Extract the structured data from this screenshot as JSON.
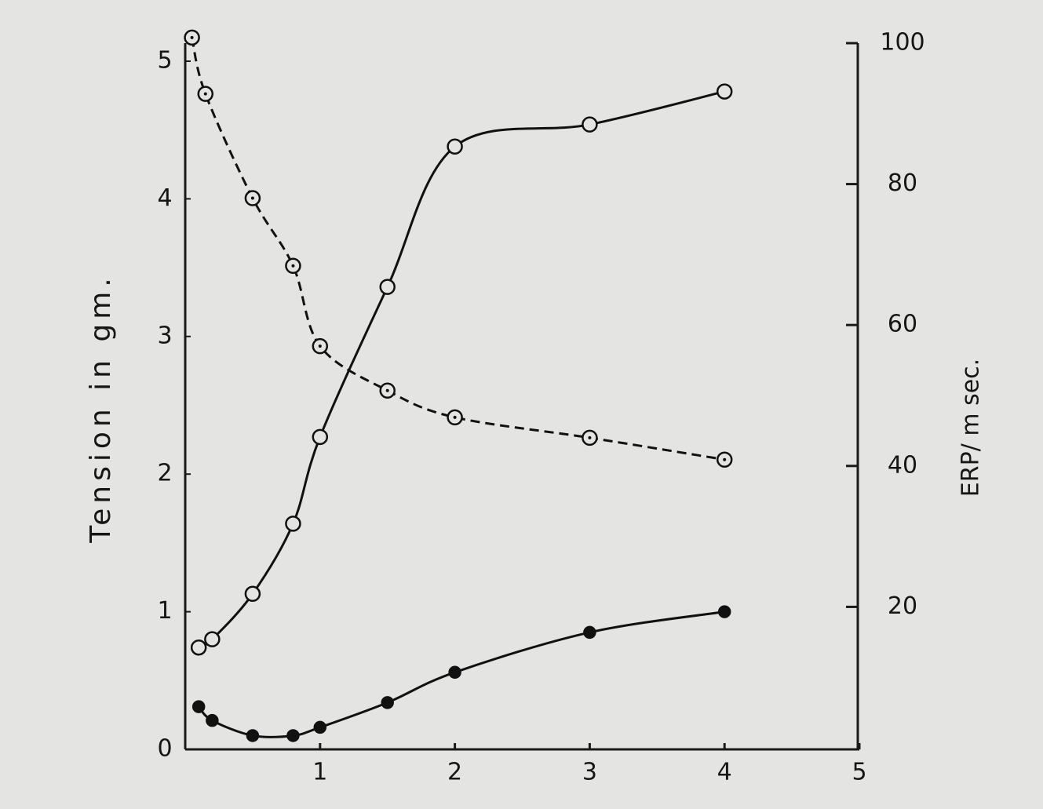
{
  "chart_data": {
    "type": "line",
    "y_label": "Tension in gm.",
    "y2_label": "ERP/ m sec.",
    "xlim": [
      0,
      5
    ],
    "xticks": [
      1,
      2,
      3,
      4,
      5
    ],
    "ylim": [
      0,
      5
    ],
    "yticks": [
      0,
      1,
      2,
      3,
      4,
      5
    ],
    "y2lim": [
      0,
      100
    ],
    "y2ticks": [
      20,
      40,
      60,
      80,
      100
    ],
    "series": [
      {
        "color": "#111111",
        "dash": "solid",
        "marker": "open",
        "axis": "y",
        "x": [
          0.1,
          0.2,
          0.5,
          0.8,
          1.0,
          1.5,
          2.0,
          3.0,
          4.0
        ],
        "values": [
          0.74,
          0.8,
          1.13,
          1.64,
          2.27,
          3.36,
          4.38,
          4.54,
          4.78
        ]
      },
      {
        "color": "#111111",
        "dash": "dashed",
        "marker": "dotted",
        "axis": "y2",
        "x": [
          0.05,
          0.15,
          0.5,
          0.8,
          1.0,
          1.5,
          2.0,
          3.0,
          4.0
        ],
        "values": [
          100.8,
          92.8,
          78,
          68.4,
          57,
          50.7,
          46.9,
          44,
          40.9
        ]
      },
      {
        "color": "#111111",
        "dash": "solid",
        "marker": "filled",
        "axis": "y",
        "x": [
          0.1,
          0.2,
          0.5,
          0.8,
          1.0,
          1.5,
          2.0,
          3.0,
          4.0
        ],
        "values": [
          0.31,
          0.21,
          0.1,
          0.1,
          0.16,
          0.34,
          0.56,
          0.85,
          1.0
        ]
      }
    ]
  }
}
